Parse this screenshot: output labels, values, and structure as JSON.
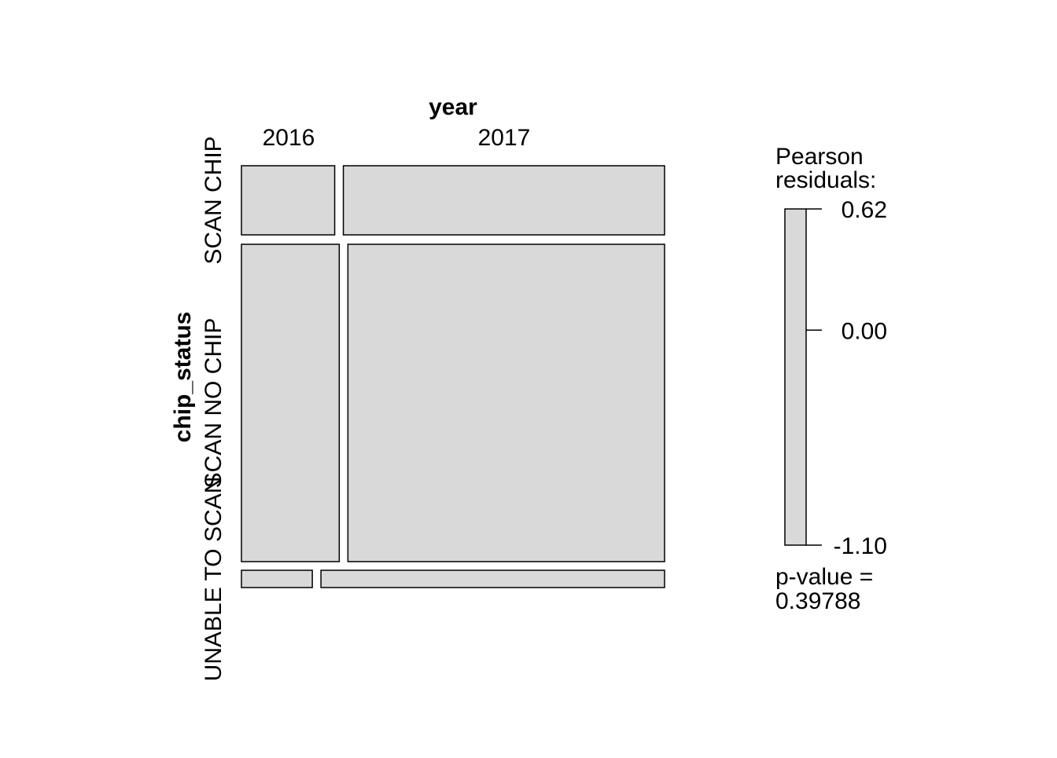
{
  "chart_data": {
    "type": "mosaic",
    "x_variable": "year",
    "y_variable": "chip_status",
    "x_categories": [
      "2016",
      "2017"
    ],
    "y_categories": [
      "SCAN CHIP",
      "SCAN NO CHIP",
      "UNABLE TO SCAN"
    ],
    "column_shares": [
      0.23,
      0.77
    ],
    "cells": [
      {
        "year": "2016",
        "chip_status": "SCAN CHIP",
        "share_within_row": 0.225
      },
      {
        "year": "2017",
        "chip_status": "SCAN CHIP",
        "share_within_row": 0.775
      },
      {
        "year": "2016",
        "chip_status": "SCAN NO CHIP",
        "share_within_row": 0.236
      },
      {
        "year": "2017",
        "chip_status": "SCAN NO CHIP",
        "share_within_row": 0.764
      },
      {
        "year": "2016",
        "chip_status": "UNABLE TO SCAN",
        "share_within_row": 0.171
      },
      {
        "year": "2017",
        "chip_status": "UNABLE TO SCAN",
        "share_within_row": 0.829
      }
    ],
    "row_shares": [
      0.175,
      0.78,
      0.045
    ],
    "legend": {
      "title": [
        "Pearson",
        "residuals:"
      ],
      "ticks": [
        "0.62",
        "0.00",
        "-1.10"
      ],
      "tick_values": [
        0.62,
        0.0,
        -1.1
      ],
      "pvalue_label": [
        "p-value =",
        "0.39788"
      ]
    },
    "fill_color": "#d9d9d9",
    "stroke_color": "#000000"
  }
}
